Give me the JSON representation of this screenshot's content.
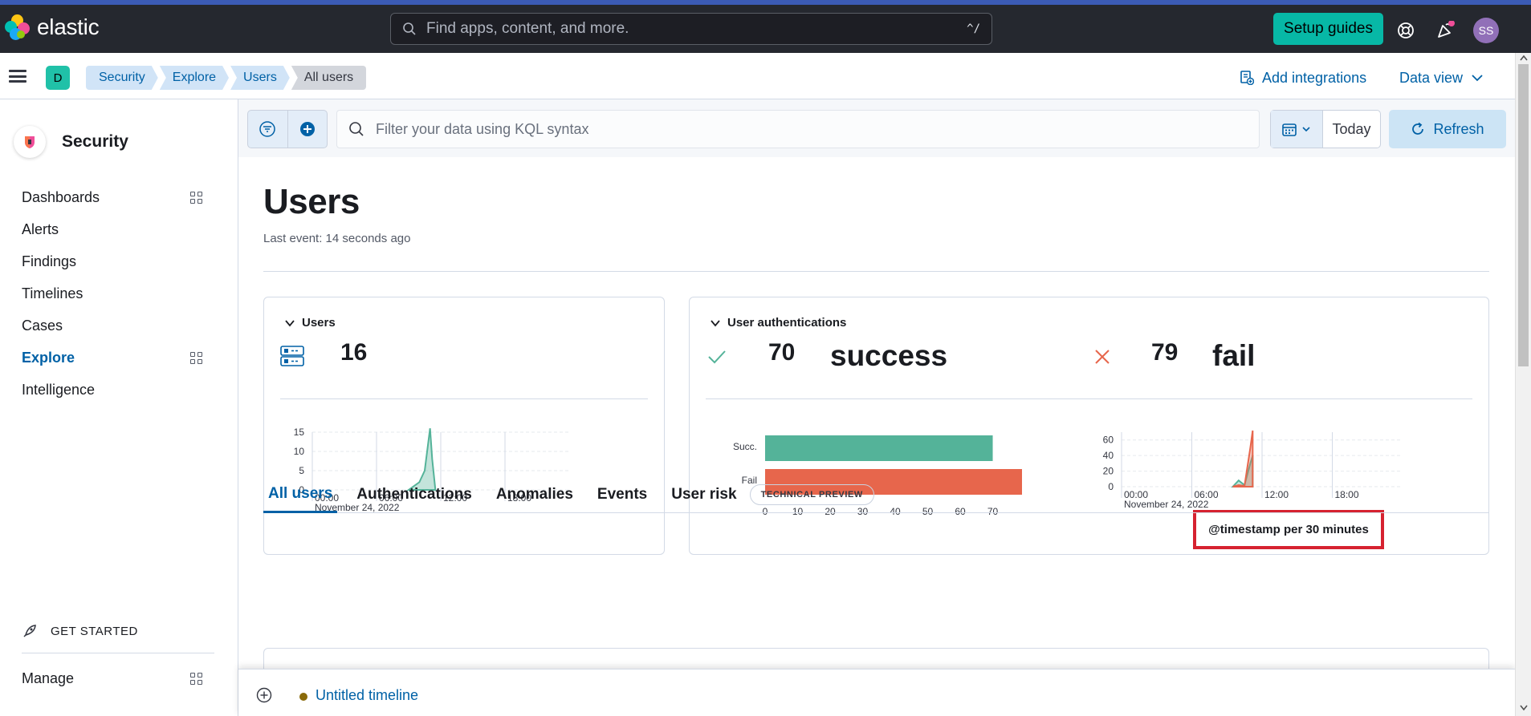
{
  "header": {
    "brand": "elastic",
    "search_placeholder": "Find apps, content, and more.",
    "search_shortcut": "^/",
    "setup_guides": "Setup guides",
    "avatar_initials": "SS"
  },
  "breadcrumbs": {
    "space_letter": "D",
    "items": [
      "Security",
      "Explore",
      "Users",
      "All users"
    ],
    "add_integrations": "Add integrations",
    "data_view": "Data view"
  },
  "sidebar": {
    "title": "Security",
    "items": [
      {
        "label": "Dashboards"
      },
      {
        "label": "Alerts"
      },
      {
        "label": "Findings"
      },
      {
        "label": "Timelines"
      },
      {
        "label": "Cases"
      },
      {
        "label": "Explore"
      },
      {
        "label": "Intelligence"
      }
    ],
    "get_started": "GET STARTED",
    "manage": "Manage"
  },
  "querybar": {
    "kql_placeholder": "Filter your data using KQL syntax",
    "date_label": "Today",
    "refresh": "Refresh"
  },
  "page": {
    "title": "Users",
    "last_event": "Last event: 14 seconds ago"
  },
  "users_panel": {
    "title": "Users",
    "count": "16"
  },
  "auth_panel": {
    "title": "User authentications",
    "success_count": "70",
    "success_word": "success",
    "fail_count": "79",
    "fail_word": "fail"
  },
  "callout": {
    "text": "@timestamp per 30 minutes"
  },
  "tabs": {
    "items": [
      "All users",
      "Authentications",
      "Anomalies",
      "Events",
      "User risk"
    ],
    "badge": "TECHNICAL PREVIEW"
  },
  "timeline": {
    "name": "Untitled timeline"
  },
  "colors": {
    "success": "#54b399",
    "fail": "#e7664c",
    "accent": "#0061a6"
  },
  "chart_data": [
    {
      "type": "area",
      "x_ticks": [
        "00:00",
        "06:00",
        "12:00",
        "18:00"
      ],
      "x_sublabel": "November 24, 2022",
      "y_ticks": [
        0,
        5,
        10,
        15
      ],
      "ylim": [
        0,
        15
      ],
      "series": [
        {
          "x": [
            9,
            9.5,
            10,
            10.5,
            11,
            11.2,
            11.5
          ],
          "values": [
            0,
            1,
            2,
            5,
            16,
            8,
            0
          ]
        }
      ]
    },
    {
      "type": "bar",
      "orientation": "horizontal",
      "categories": [
        "Succ.",
        "Fail"
      ],
      "values": [
        70,
        79
      ],
      "x_ticks": [
        0,
        10,
        20,
        30,
        40,
        50,
        60,
        70
      ],
      "xlim": [
        0,
        79
      ]
    },
    {
      "type": "area",
      "x_ticks": [
        "00:00",
        "06:00",
        "12:00",
        "18:00"
      ],
      "x_sublabel": "November 24, 2022",
      "y_ticks": [
        0,
        20,
        40,
        60
      ],
      "ylim": [
        0,
        70
      ],
      "series": [
        {
          "name": "success",
          "x": [
            9.5,
            10,
            10.5,
            11,
            11.2
          ],
          "values": [
            0,
            8,
            2,
            30,
            40
          ]
        },
        {
          "name": "fail",
          "x": [
            9.5,
            10,
            10.5,
            11,
            11.2
          ],
          "values": [
            0,
            2,
            1,
            50,
            72
          ]
        }
      ]
    }
  ]
}
